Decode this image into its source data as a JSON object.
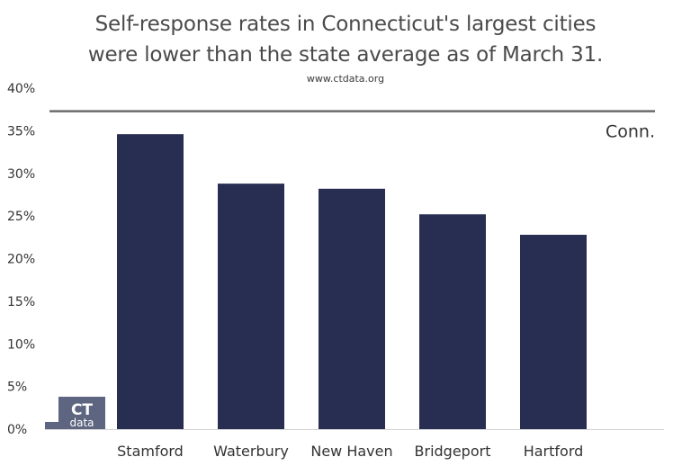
{
  "chart_data": {
    "type": "bar",
    "title_lines": [
      "Self-response rates in Connecticut's largest cities",
      "were lower than the state average as of March 31."
    ],
    "subtitle": "www.ctdata.org",
    "categories": [
      "Stamford",
      "Waterbury",
      "New Haven",
      "Bridgeport",
      "Hartford"
    ],
    "values": [
      34.6,
      28.8,
      28.2,
      25.2,
      22.8
    ],
    "unit": "%",
    "ylim": [
      0,
      40
    ],
    "yticks": [
      0,
      5,
      10,
      15,
      20,
      25,
      30,
      35,
      40
    ],
    "reference_line": {
      "label": "Conn.",
      "value": 37.3
    },
    "grid": false,
    "bar_color": "#272e52"
  },
  "logo": {
    "top": "CT",
    "bottom": "data",
    "color": "#5e6580"
  }
}
